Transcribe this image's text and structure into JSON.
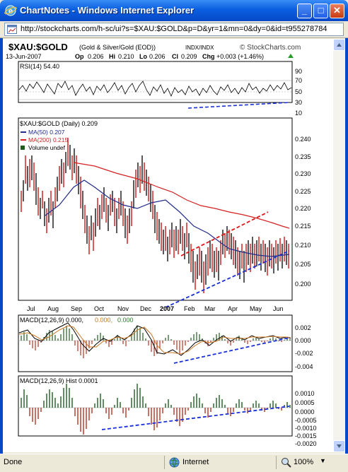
{
  "window": {
    "title": "ChartNotes - Windows Internet Explorer",
    "minimize_label": "_",
    "maximize_label": "□",
    "close_label": "✕",
    "address": "http://stockcharts.com/h-sc/ui?s=$XAU:$GOLD&p=D&yr=1&mn=0&dy=0&id=t955278784"
  },
  "status": {
    "text": "Done",
    "zone": "Internet",
    "zoom": "100%"
  },
  "chart": {
    "symbol": "$XAU:$GOLD",
    "name": "(Gold & Silver/Gold (EOD))",
    "exchange": "INDX/INDX",
    "brand": "© StockCharts.com",
    "date": "13-Jun-2007",
    "ohlc_open_label": "Op",
    "ohlc_open": "0.206",
    "ohlc_high_label": "Hi",
    "ohlc_high": "0.210",
    "ohlc_low_label": "Lo",
    "ohlc_low": "0.206",
    "ohlc_close_label": "Cl",
    "ohlc_close": "0.209",
    "change_label": "Chg",
    "change": "+0.003 (+1.46%)",
    "rsi_label": "RSI(14) 54.40",
    "rsi_ticks": [
      "90",
      "70",
      "50",
      "30",
      "10"
    ],
    "price_label": "$XAU:$GOLD (Daily) 0.209",
    "ma50_label": "MA(50) 0.207",
    "ma200_label": "MA(200) 0.215",
    "volume_label": "Volume undef",
    "price_ticks": [
      "0.240",
      "0.235",
      "0.230",
      "0.225",
      "0.220",
      "0.215",
      "0.210",
      "0.205",
      "0.200"
    ],
    "months": [
      "Jul",
      "Aug",
      "Sep",
      "Oct",
      "Nov",
      "Dec",
      "2007",
      "Feb",
      "Mar",
      "Apr",
      "May",
      "Jun"
    ],
    "macd_label": "MACD(12,26,9) 0.000,",
    "macd_v2": "0.000,",
    "macd_v3": "0.000",
    "macd_ticks": [
      "0.002",
      "0.000",
      "-0.002",
      "-0.004"
    ],
    "hist_label": "MACD(12,26,9) Hist 0.0001",
    "hist_ticks": [
      "0.0010",
      "0.0005",
      "0.0000",
      "-0.0005",
      "-0.0010",
      "-0.0015",
      "-0.0020"
    ],
    "colors": {
      "price_up": "#000000",
      "price_down": "#cc0000",
      "ma50": "#1f2a8a",
      "ma200": "#d42020",
      "trend": "#1a30d8",
      "channel": "#e01818",
      "macd": "#000000",
      "signal": "#c8741e",
      "hist_pos": "#1e5c1e",
      "hist_neg": "#b43222"
    }
  }
}
